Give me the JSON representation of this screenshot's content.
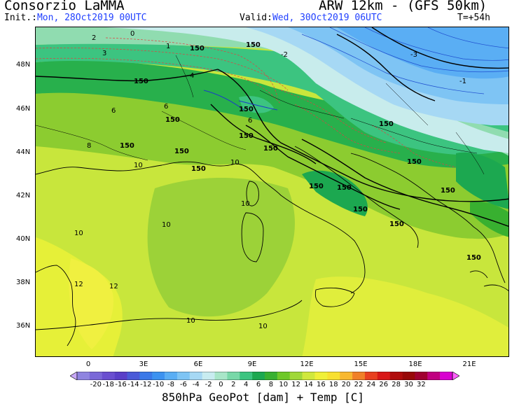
{
  "header": {
    "organization": "Consorzio LaMMA",
    "init_label": "Init.:",
    "init_value": "Mon, 28Oct2019 00UTC",
    "model": "ARW 12km - (GFS 50km)",
    "valid_label": "Valid:",
    "valid_value": "Wed, 30Oct2019 06UTC",
    "forecast_step": "T=+54h"
  },
  "map": {
    "latitude_labels": [
      "48N",
      "46N",
      "44N",
      "42N",
      "40N",
      "38N",
      "36N"
    ],
    "longitude_labels": [
      "0",
      "3E",
      "6E",
      "9E",
      "12E",
      "15E",
      "18E",
      "21E"
    ],
    "geopotential_contour_labels": [
      "150",
      "150",
      "150",
      "150",
      "150",
      "150",
      "150",
      "150",
      "150",
      "150",
      "150",
      "150",
      "150",
      "150",
      "150",
      "150",
      "150",
      "150"
    ],
    "temperature_contour_labels": [
      "10",
      "10",
      "10",
      "10",
      "10",
      "10",
      "10",
      "12",
      "12",
      "8",
      "6",
      "6",
      "6",
      "4",
      "3",
      "2",
      "1",
      "0",
      "-1",
      "-2",
      "-3"
    ]
  },
  "colorbar": {
    "ticks": [
      "-20",
      "-18",
      "-16",
      "-14",
      "-12",
      "-10",
      "-8",
      "-6",
      "-4",
      "-2",
      "0",
      "2",
      "4",
      "6",
      "8",
      "10",
      "12",
      "14",
      "16",
      "18",
      "20",
      "22",
      "24",
      "26",
      "28",
      "30",
      "32"
    ],
    "colors": [
      "#8f84e0",
      "#7a68d8",
      "#6a4fd0",
      "#5a3fc8",
      "#4a5ad8",
      "#3a78e8",
      "#3c92f0",
      "#5aaef4",
      "#7ec4f4",
      "#a6d8f4",
      "#c8ecf0",
      "#a8e6c8",
      "#78d8a8",
      "#3cc480",
      "#1ca850",
      "#38b030",
      "#6ec828",
      "#a0d838",
      "#d0e83c",
      "#f0f038",
      "#f8e030",
      "#f8b830",
      "#f08028",
      "#e84020",
      "#d81818",
      "#b00c0c",
      "#980808",
      "#a00030",
      "#c00080",
      "#d800d0"
    ],
    "left_arrow_color": "#c8a8f8",
    "right_arrow_color": "#ff60ff"
  },
  "caption": "850hPa GeoPot [dam] + Temp [C]"
}
